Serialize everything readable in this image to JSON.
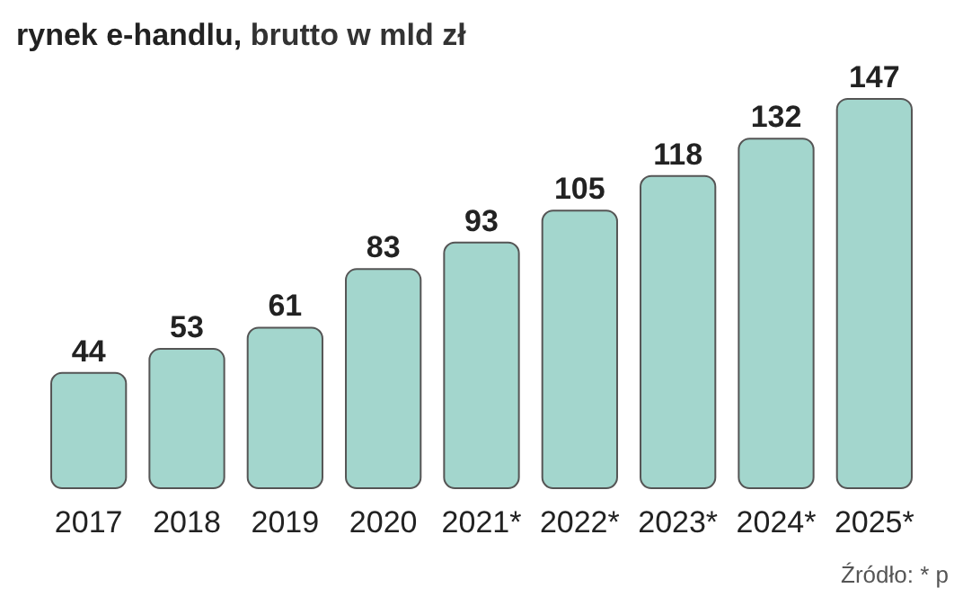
{
  "chart_data": {
    "type": "bar",
    "title": "rynek e-handlu, brutto w mld zł",
    "categories": [
      "2017",
      "2018",
      "2019",
      "2020",
      "2021*",
      "2022*",
      "2023*",
      "2024*",
      "2025*"
    ],
    "values": [
      44,
      53,
      61,
      83,
      93,
      105,
      118,
      132,
      147
    ],
    "color": "#a3d6cd",
    "data_labels": true,
    "annotations": [
      "Źródło: * p"
    ]
  }
}
